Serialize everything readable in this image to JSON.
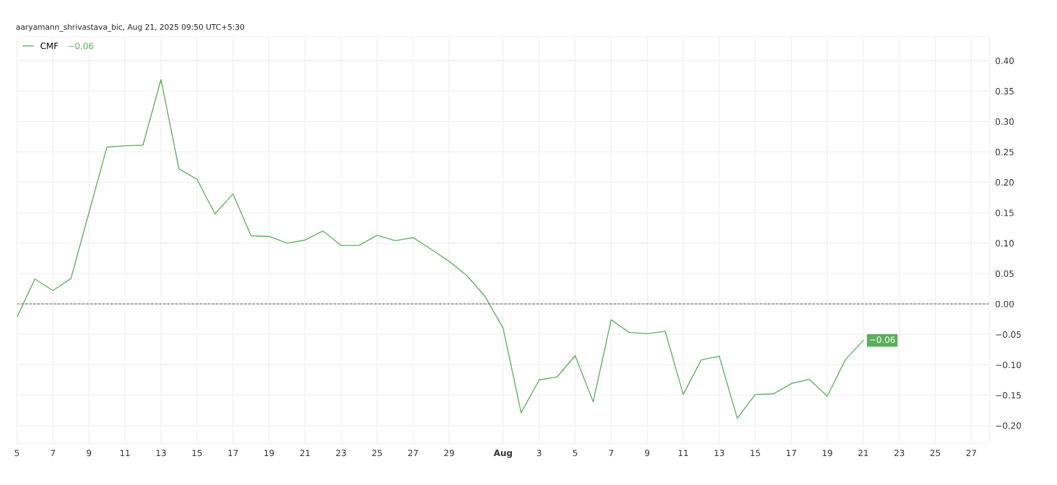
{
  "chart_data": {
    "type": "line",
    "annotations": [
      "aaryamann_shrivastava_bic, Aug 21, 2025 09:50 UTC+5:30",
      "−0.06"
    ],
    "x": [
      "2025-07-05",
      "2025-07-06",
      "2025-07-07",
      "2025-07-08",
      "2025-07-09",
      "2025-07-10",
      "2025-07-11",
      "2025-07-12",
      "2025-07-13",
      "2025-07-14",
      "2025-07-15",
      "2025-07-16",
      "2025-07-17",
      "2025-07-18",
      "2025-07-19",
      "2025-07-20",
      "2025-07-21",
      "2025-07-22",
      "2025-07-23",
      "2025-07-24",
      "2025-07-25",
      "2025-07-26",
      "2025-07-27",
      "2025-07-28",
      "2025-07-29",
      "2025-07-30",
      "2025-07-31",
      "2025-08-01",
      "2025-08-02",
      "2025-08-03",
      "2025-08-04",
      "2025-08-05",
      "2025-08-06",
      "2025-08-07",
      "2025-08-08",
      "2025-08-09",
      "2025-08-10",
      "2025-08-11",
      "2025-08-12",
      "2025-08-13",
      "2025-08-14",
      "2025-08-15",
      "2025-08-16",
      "2025-08-17",
      "2025-08-18",
      "2025-08-19",
      "2025-08-20",
      "2025-08-21"
    ],
    "series": [
      {
        "name": "CMF",
        "color": "#5cae5c",
        "values": [
          -0.022,
          0.041,
          0.022,
          0.042,
          0.15,
          0.258,
          0.26,
          0.261,
          0.369,
          0.222,
          0.205,
          0.148,
          0.181,
          0.112,
          0.111,
          0.1,
          0.105,
          0.12,
          0.096,
          0.096,
          0.113,
          0.104,
          0.109,
          0.09,
          0.07,
          0.046,
          0.012,
          -0.04,
          -0.179,
          -0.125,
          -0.12,
          -0.085,
          -0.161,
          -0.026,
          -0.047,
          -0.049,
          -0.045,
          -0.149,
          -0.092,
          -0.086,
          -0.188,
          -0.149,
          -0.148,
          -0.131,
          -0.124,
          -0.152,
          -0.092,
          -0.06
        ],
        "value_labels": [
          null,
          null,
          null,
          null,
          null,
          null,
          null,
          null,
          null,
          null,
          null,
          null,
          null,
          null,
          null,
          null,
          null,
          null,
          null,
          null,
          null,
          null,
          null,
          null,
          null,
          null,
          null,
          null,
          null,
          null,
          null,
          null,
          null,
          null,
          null,
          null,
          null,
          null,
          null,
          null,
          null,
          null,
          null,
          null,
          null,
          null,
          null,
          "−0.06"
        ]
      }
    ],
    "xlim": [
      "2025-07-05",
      "2025-08-28"
    ],
    "xticks": [
      {
        "value": "2025-07-05",
        "label": "5"
      },
      {
        "value": "2025-07-07",
        "label": "7"
      },
      {
        "value": "2025-07-09",
        "label": "9"
      },
      {
        "value": "2025-07-11",
        "label": "11"
      },
      {
        "value": "2025-07-13",
        "label": "13"
      },
      {
        "value": "2025-07-15",
        "label": "15"
      },
      {
        "value": "2025-07-17",
        "label": "17"
      },
      {
        "value": "2025-07-19",
        "label": "19"
      },
      {
        "value": "2025-07-21",
        "label": "21"
      },
      {
        "value": "2025-07-23",
        "label": "23"
      },
      {
        "value": "2025-07-25",
        "label": "25"
      },
      {
        "value": "2025-07-27",
        "label": "27"
      },
      {
        "value": "2025-07-29",
        "label": "29"
      },
      {
        "value": "2025-08-01",
        "label": "Aug"
      },
      {
        "value": "2025-08-03",
        "label": "3"
      },
      {
        "value": "2025-08-05",
        "label": "5"
      },
      {
        "value": "2025-08-07",
        "label": "7"
      },
      {
        "value": "2025-08-09",
        "label": "9"
      },
      {
        "value": "2025-08-11",
        "label": "11"
      },
      {
        "value": "2025-08-13",
        "label": "13"
      },
      {
        "value": "2025-08-15",
        "label": "15"
      },
      {
        "value": "2025-08-17",
        "label": "17"
      },
      {
        "value": "2025-08-19",
        "label": "19"
      },
      {
        "value": "2025-08-21",
        "label": "21"
      },
      {
        "value": "2025-08-23",
        "label": "23"
      },
      {
        "value": "2025-08-25",
        "label": "25"
      },
      {
        "value": "2025-08-27",
        "label": "27"
      }
    ],
    "ylim": [
      -0.23,
      0.44
    ],
    "yticks": [
      {
        "value": -0.2,
        "label": "−0.20"
      },
      {
        "value": -0.15,
        "label": "−0.15"
      },
      {
        "value": -0.1,
        "label": "−0.10"
      },
      {
        "value": -0.05,
        "label": "−0.05"
      },
      {
        "value": 0,
        "label": "0.00"
      },
      {
        "value": 0.05,
        "label": "0.05"
      },
      {
        "value": 0.1,
        "label": "0.10"
      },
      {
        "value": 0.15,
        "label": "0.15"
      },
      {
        "value": 0.2,
        "label": "0.20"
      },
      {
        "value": 0.25,
        "label": "0.25"
      },
      {
        "value": 0.3,
        "label": "0.30"
      },
      {
        "value": 0.35,
        "label": "0.35"
      },
      {
        "value": 0.4,
        "label": "0.40"
      }
    ],
    "ref_lines": [
      {
        "axis": "y",
        "value": 0,
        "color": "#777777",
        "line_style": "dashed"
      }
    ],
    "grid": true,
    "legend": "top left",
    "line_style": "solid",
    "marker": "none"
  }
}
